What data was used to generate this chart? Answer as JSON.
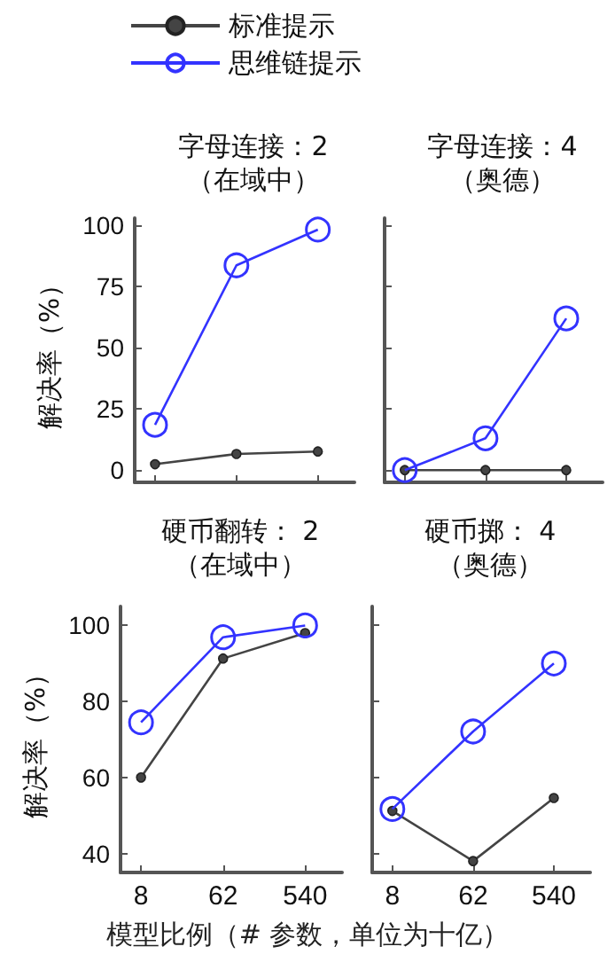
{
  "chart_data": [
    {
      "type": "line",
      "title": "字母连接：2",
      "subtitle": "（在域中）",
      "ylabel": "解决率（%）",
      "categories": [
        "8",
        "62",
        "540"
      ],
      "ylim": [
        -5,
        103
      ],
      "yticks": [
        0,
        25,
        50,
        75,
        100
      ],
      "tick_labels": "y",
      "legend": "top",
      "grid": false,
      "series": [
        {
          "name": "标准提示",
          "color": "#444444",
          "marker": "circle",
          "values": [
            2.4,
            6.6,
            7.6
          ]
        },
        {
          "name": "思维链提示",
          "color": "#3333ff",
          "marker": "circle",
          "values": [
            18.5,
            83.7,
            98.3
          ]
        }
      ]
    },
    {
      "type": "line",
      "title": "字母连接：4",
      "subtitle": "（奥德）",
      "categories": [
        "8",
        "62",
        "540"
      ],
      "ylim": [
        -5,
        103
      ],
      "yticks": [
        0,
        25,
        50,
        75,
        100
      ],
      "tick_labels": false,
      "legend": false,
      "grid": false,
      "series": [
        {
          "color": "#444444",
          "marker": "circle",
          "values": [
            0,
            0,
            0
          ]
        },
        {
          "color": "#3333ff",
          "marker": "circle",
          "values": [
            0,
            13,
            62
          ]
        }
      ]
    },
    {
      "type": "line",
      "title": "硬币翻转： 2",
      "subtitle": "（在域中）",
      "ylabel": "解决率（%）",
      "xlabel": "模型比例（# 参数，单位为十亿）",
      "categories": [
        "8",
        "62",
        "540"
      ],
      "ylim": [
        35,
        105
      ],
      "yticks": [
        40,
        60,
        80,
        100
      ],
      "legend": false,
      "grid": false,
      "series": [
        {
          "color": "#444444",
          "marker": "circle",
          "values": [
            60,
            91.3,
            98
          ]
        },
        {
          "color": "#3333ff",
          "marker": "circle",
          "values": [
            74.5,
            96.9,
            100
          ]
        }
      ]
    },
    {
      "type": "line",
      "title": "硬币掷： 4",
      "subtitle": "（奥德）",
      "categories": [
        "8",
        "62",
        "540"
      ],
      "ylim": [
        35,
        105
      ],
      "yticks": [
        40,
        60,
        80,
        100
      ],
      "tick_labels": "x",
      "legend": false,
      "grid": false,
      "series": [
        {
          "color": "#444444",
          "marker": "circle",
          "values": [
            51.2,
            38,
            54.6
          ]
        },
        {
          "color": "#3333ff",
          "marker": "circle",
          "values": [
            51.7,
            72.1,
            90
          ]
        }
      ]
    }
  ]
}
